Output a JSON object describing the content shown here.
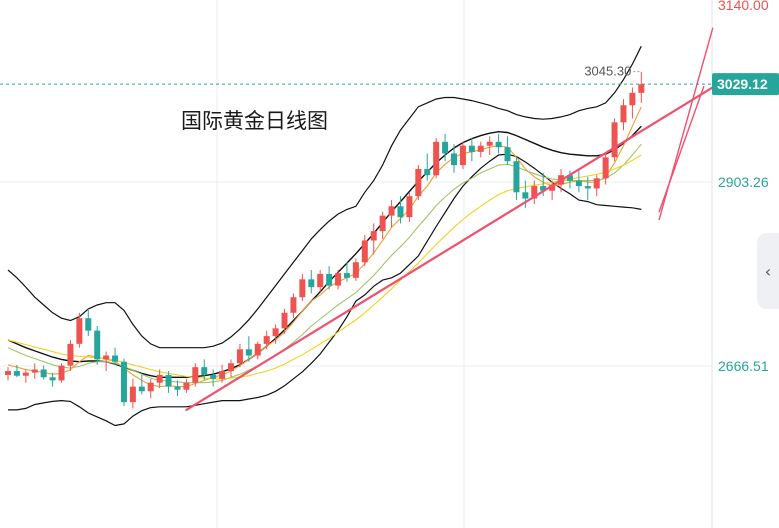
{
  "colors": {
    "up": "#ef5350",
    "down": "#26a69a",
    "ma_fast": "#f0a030",
    "ma_mid": "#a5c36a",
    "ma_slow": "#f2d21f",
    "boll": "#111111",
    "trendline": "#f0506e",
    "last_price_bg": "#26a69a",
    "axis_text_top": "#ef5350",
    "axis_text": "#26a69a"
  },
  "panel": {
    "collapse_icon": "chevron-left-icon",
    "collapse_glyph": "‹"
  },
  "chart_data": {
    "type": "candlestick",
    "title": "国际黄金日线图",
    "y_tick_labels": [
      "3140.00",
      "2903.26",
      "2666.51"
    ],
    "y_ticks": [
      3140.0,
      2903.26,
      2666.51
    ],
    "ylim": [
      2550,
      3140
    ],
    "last_price": 3029.12,
    "last_price_label": "3029.12",
    "high_marker": 3045.3,
    "high_marker_label": "3045.30",
    "grid": true,
    "candles": [
      [
        2655,
        2665,
        2648,
        2660
      ],
      [
        2660,
        2668,
        2652,
        2654
      ],
      [
        2654,
        2662,
        2645,
        2658
      ],
      [
        2658,
        2670,
        2650,
        2662
      ],
      [
        2662,
        2667,
        2649,
        2652
      ],
      [
        2652,
        2658,
        2640,
        2648
      ],
      [
        2648,
        2670,
        2645,
        2667
      ],
      [
        2667,
        2700,
        2660,
        2695
      ],
      [
        2695,
        2735,
        2690,
        2728
      ],
      [
        2728,
        2740,
        2705,
        2712
      ],
      [
        2712,
        2718,
        2668,
        2675
      ],
      [
        2675,
        2685,
        2660,
        2680
      ],
      [
        2680,
        2690,
        2668,
        2672
      ],
      [
        2672,
        2676,
        2615,
        2620
      ],
      [
        2620,
        2650,
        2612,
        2640
      ],
      [
        2640,
        2655,
        2630,
        2634
      ],
      [
        2634,
        2650,
        2625,
        2645
      ],
      [
        2645,
        2662,
        2638,
        2655
      ],
      [
        2655,
        2660,
        2632,
        2640
      ],
      [
        2640,
        2648,
        2628,
        2636
      ],
      [
        2636,
        2650,
        2632,
        2645
      ],
      [
        2645,
        2670,
        2640,
        2665
      ],
      [
        2665,
        2675,
        2648,
        2655
      ],
      [
        2655,
        2662,
        2640,
        2650
      ],
      [
        2650,
        2668,
        2645,
        2660
      ],
      [
        2660,
        2675,
        2652,
        2670
      ],
      [
        2670,
        2695,
        2665,
        2688
      ],
      [
        2688,
        2705,
        2672,
        2680
      ],
      [
        2680,
        2698,
        2675,
        2695
      ],
      [
        2695,
        2712,
        2688,
        2705
      ],
      [
        2705,
        2720,
        2695,
        2715
      ],
      [
        2715,
        2740,
        2708,
        2735
      ],
      [
        2735,
        2760,
        2728,
        2755
      ],
      [
        2755,
        2785,
        2750,
        2778
      ],
      [
        2778,
        2790,
        2760,
        2768
      ],
      [
        2768,
        2790,
        2762,
        2785
      ],
      [
        2785,
        2795,
        2765,
        2770
      ],
      [
        2770,
        2790,
        2765,
        2786
      ],
      [
        2786,
        2800,
        2775,
        2780
      ],
      [
        2780,
        2805,
        2776,
        2800
      ],
      [
        2800,
        2835,
        2795,
        2828
      ],
      [
        2828,
        2850,
        2810,
        2840
      ],
      [
        2840,
        2865,
        2830,
        2860
      ],
      [
        2860,
        2880,
        2845,
        2872
      ],
      [
        2872,
        2885,
        2850,
        2858
      ],
      [
        2858,
        2890,
        2852,
        2885
      ],
      [
        2885,
        2925,
        2880,
        2920
      ],
      [
        2920,
        2940,
        2905,
        2912
      ],
      [
        2912,
        2960,
        2908,
        2955
      ],
      [
        2955,
        2965,
        2930,
        2940
      ],
      [
        2940,
        2952,
        2915,
        2925
      ],
      [
        2925,
        2955,
        2920,
        2950
      ],
      [
        2950,
        2960,
        2930,
        2942
      ],
      [
        2942,
        2955,
        2935,
        2950
      ],
      [
        2950,
        2962,
        2938,
        2955
      ],
      [
        2955,
        2965,
        2940,
        2948
      ],
      [
        2948,
        2962,
        2925,
        2930
      ],
      [
        2930,
        2935,
        2880,
        2890
      ],
      [
        2890,
        2905,
        2870,
        2882
      ],
      [
        2882,
        2905,
        2875,
        2898
      ],
      [
        2898,
        2915,
        2885,
        2892
      ],
      [
        2892,
        2905,
        2880,
        2900
      ],
      [
        2900,
        2920,
        2890,
        2912
      ],
      [
        2912,
        2918,
        2895,
        2905
      ],
      [
        2905,
        2918,
        2890,
        2898
      ],
      [
        2898,
        2910,
        2880,
        2895
      ],
      [
        2895,
        2912,
        2885,
        2908
      ],
      [
        2908,
        2940,
        2900,
        2935
      ],
      [
        2935,
        2985,
        2930,
        2980
      ],
      [
        2980,
        3010,
        2970,
        3002
      ],
      [
        3002,
        3025,
        2985,
        3018
      ],
      [
        3018,
        3045,
        3005,
        3029
      ]
    ],
    "series": [
      {
        "values": [
          2668,
          2665,
          2662,
          2660,
          2658,
          2656,
          2657,
          2662,
          2672,
          2680,
          2678,
          2675,
          2673,
          2664,
          2655,
          2648,
          2642,
          2640,
          2641,
          2640,
          2640,
          2644,
          2648,
          2652,
          2655,
          2660,
          2667,
          2675,
          2683,
          2692,
          2700,
          2710,
          2723,
          2737,
          2750,
          2758,
          2768,
          2775,
          2780,
          2786,
          2798,
          2812,
          2828,
          2845,
          2856,
          2868,
          2885,
          2898,
          2915,
          2926,
          2935,
          2940,
          2942,
          2945,
          2948,
          2950,
          2948,
          2935,
          2920,
          2910,
          2903,
          2898,
          2900,
          2903,
          2905,
          2903,
          2903,
          2910,
          2928,
          2950,
          2975,
          3000
        ]
      },
      {
        "values": [
          2690,
          2685,
          2680,
          2676,
          2672,
          2668,
          2665,
          2664,
          2666,
          2670,
          2672,
          2672,
          2670,
          2666,
          2661,
          2656,
          2651,
          2648,
          2647,
          2646,
          2645,
          2645,
          2645,
          2646,
          2648,
          2652,
          2656,
          2661,
          2667,
          2673,
          2680,
          2688,
          2697,
          2707,
          2718,
          2727,
          2736,
          2745,
          2753,
          2761,
          2772,
          2783,
          2796,
          2809,
          2820,
          2832,
          2846,
          2859,
          2873,
          2884,
          2894,
          2902,
          2908,
          2915,
          2920,
          2925,
          2926,
          2923,
          2918,
          2914,
          2910,
          2907,
          2906,
          2905,
          2905,
          2905,
          2905,
          2908,
          2915,
          2925,
          2938,
          2952
        ]
      },
      {
        "values": [
          2700,
          2697,
          2694,
          2691,
          2688,
          2685,
          2682,
          2680,
          2679,
          2678,
          2677,
          2676,
          2674,
          2671,
          2668,
          2665,
          2662,
          2659,
          2657,
          2655,
          2653,
          2652,
          2651,
          2650,
          2650,
          2651,
          2652,
          2654,
          2657,
          2660,
          2664,
          2669,
          2675,
          2681,
          2688,
          2695,
          2702,
          2710,
          2718,
          2726,
          2735,
          2745,
          2755,
          2766,
          2777,
          2788,
          2799,
          2811,
          2823,
          2834,
          2845,
          2855,
          2864,
          2872,
          2880,
          2887,
          2892,
          2895,
          2897,
          2899,
          2901,
          2903,
          2905,
          2907,
          2909,
          2911,
          2913,
          2916,
          2920,
          2925,
          2931,
          2938
        ]
      },
      {
        "values": [
          2700,
          2695,
          2690,
          2686,
          2682,
          2678,
          2675,
          2673,
          2672,
          2673,
          2673,
          2672,
          2669,
          2665,
          2661,
          2657,
          2654,
          2652,
          2652,
          2652,
          2652,
          2653,
          2654,
          2656,
          2659,
          2663,
          2668,
          2675,
          2683,
          2692,
          2702,
          2713,
          2725,
          2737,
          2750,
          2762,
          2775,
          2787,
          2799,
          2811,
          2824,
          2837,
          2851,
          2865,
          2878,
          2891,
          2904,
          2916,
          2928,
          2938,
          2947,
          2954,
          2959,
          2963,
          2966,
          2968,
          2967,
          2963,
          2958,
          2953,
          2948,
          2944,
          2941,
          2939,
          2938,
          2937,
          2937,
          2939,
          2945,
          2953,
          2963,
          2975
        ]
      },
      {
        "values": [
          2790,
          2780,
          2768,
          2755,
          2745,
          2735,
          2728,
          2725,
          2730,
          2740,
          2745,
          2748,
          2748,
          2738,
          2720,
          2705,
          2695,
          2690,
          2690,
          2690,
          2690,
          2690,
          2690,
          2692,
          2696,
          2704,
          2714,
          2726,
          2740,
          2755,
          2770,
          2785,
          2800,
          2815,
          2830,
          2842,
          2853,
          2862,
          2868,
          2872,
          2890,
          2905,
          2925,
          2950,
          2970,
          2985,
          3000,
          3005,
          3010,
          3012,
          3012,
          3010,
          3008,
          3005,
          3002,
          2998,
          2995,
          2990,
          2987,
          2985,
          2984,
          2985,
          2987,
          2990,
          2995,
          2998,
          3000,
          3005,
          3018,
          3035,
          3055,
          3078
        ]
      },
      {
        "values": [
          2610,
          2610,
          2612,
          2617,
          2619,
          2621,
          2622,
          2621,
          2614,
          2606,
          2601,
          2596,
          2590,
          2592,
          2602,
          2609,
          2613,
          2614,
          2614,
          2614,
          2614,
          2616,
          2618,
          2620,
          2622,
          2622,
          2622,
          2624,
          2626,
          2629,
          2634,
          2641,
          2650,
          2659,
          2670,
          2682,
          2697,
          2712,
          2730,
          2750,
          2758,
          2769,
          2777,
          2780,
          2786,
          2797,
          2808,
          2827,
          2846,
          2864,
          2882,
          2898,
          2910,
          2921,
          2930,
          2938,
          2939,
          2936,
          2929,
          2921,
          2912,
          2903,
          2895,
          2888,
          2880,
          2878,
          2874,
          2873,
          2872,
          2871,
          2870,
          2868
        ]
      }
    ],
    "trendlines": [
      {
        "from": [
          20,
          2610
        ],
        "to": [
          80,
          3032
        ]
      },
      {
        "from": [
          73,
          2855
        ],
        "to": [
          79,
          3101
        ]
      },
      {
        "from": [
          73,
          2865
        ],
        "to": [
          78,
          3026
        ]
      }
    ]
  }
}
